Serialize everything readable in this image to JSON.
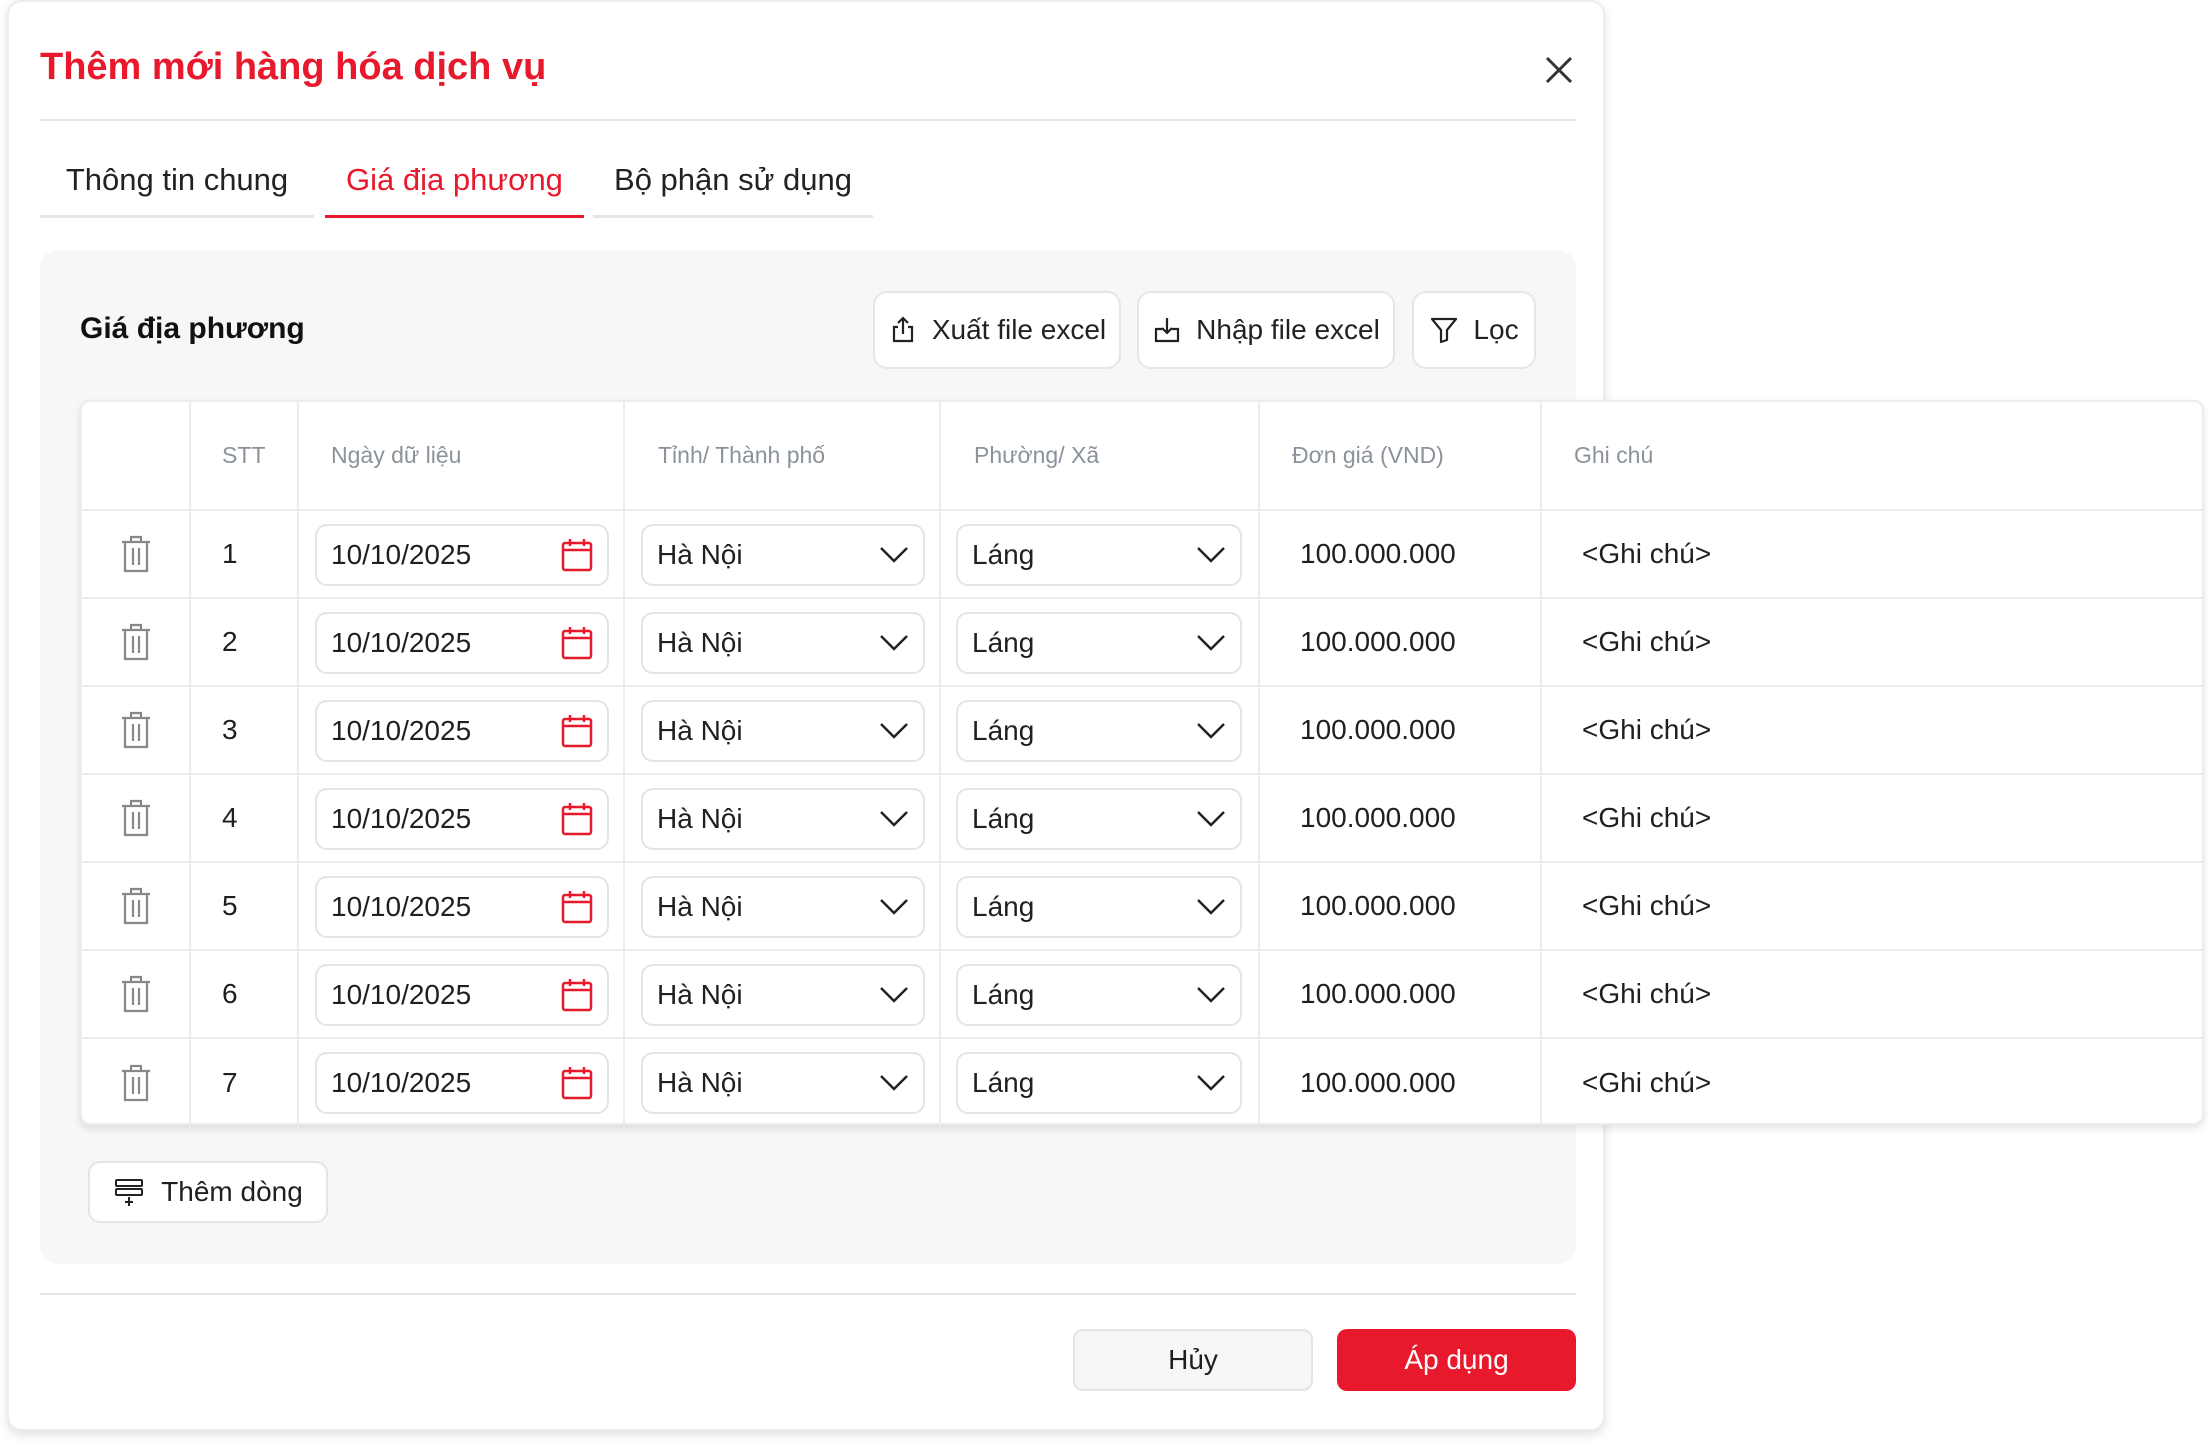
{
  "dialog": {
    "title": "Thêm mới hàng hóa dịch vụ",
    "accent": "#e8192c"
  },
  "tabs": [
    {
      "label": "Thông tin chung"
    },
    {
      "label": "Giá địa phương",
      "active": true
    },
    {
      "label": "Bộ phận sử dụng"
    }
  ],
  "panel": {
    "title": "Giá địa phương",
    "export_label": "Xuất file excel",
    "import_label": "Nhập file excel",
    "filter_label": "Lọc"
  },
  "table": {
    "headers": [
      "STT",
      "Ngày dữ liệu",
      "Tỉnh/ Thành phố",
      "Phường/ Xã",
      "Đơn giá (VND)",
      "Ghi chú"
    ],
    "rows": [
      {
        "stt": "1",
        "date": "10/10/2025",
        "province": "Hà Nội",
        "ward": "Láng",
        "price": "100.000.000",
        "note": "<Ghi chú>"
      },
      {
        "stt": "2",
        "date": "10/10/2025",
        "province": "Hà Nội",
        "ward": "Láng",
        "price": "100.000.000",
        "note": "<Ghi chú>"
      },
      {
        "stt": "3",
        "date": "10/10/2025",
        "province": "Hà Nội",
        "ward": "Láng",
        "price": "100.000.000",
        "note": "<Ghi chú>"
      },
      {
        "stt": "4",
        "date": "10/10/2025",
        "province": "Hà Nội",
        "ward": "Láng",
        "price": "100.000.000",
        "note": "<Ghi chú>"
      },
      {
        "stt": "5",
        "date": "10/10/2025",
        "province": "Hà Nội",
        "ward": "Láng",
        "price": "100.000.000",
        "note": "<Ghi chú>"
      },
      {
        "stt": "6",
        "date": "10/10/2025",
        "province": "Hà Nội",
        "ward": "Láng",
        "price": "100.000.000",
        "note": "<Ghi chú>"
      },
      {
        "stt": "7",
        "date": "10/10/2025",
        "province": "Hà Nội",
        "ward": "Láng",
        "price": "100.000.000",
        "note": "<Ghi chú>"
      }
    ]
  },
  "add_row_label": "Thêm dòng",
  "footer": {
    "cancel_label": "Hủy",
    "apply_label": "Áp dụng"
  }
}
